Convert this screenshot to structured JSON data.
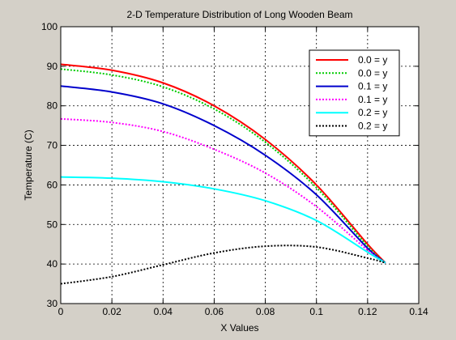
{
  "chart_data": {
    "type": "line",
    "title": "2-D Temperature Distribution of Long Wooden Beam",
    "xlabel": "X Values",
    "ylabel": "Temperature (C)",
    "xlim": [
      0,
      0.14
    ],
    "ylim": [
      30,
      100
    ],
    "xticks": [
      "0",
      "0.02",
      "0.04",
      "0.06",
      "0.08",
      "0.1",
      "0.12",
      "0.14"
    ],
    "yticks": [
      "30",
      "40",
      "50",
      "60",
      "70",
      "80",
      "90",
      "100"
    ],
    "grid": true,
    "legend_position": "top-right",
    "series": [
      {
        "name": "0.0 = y",
        "color": "#ff0000",
        "style": "solid",
        "x": [
          0,
          0.02,
          0.04,
          0.06,
          0.08,
          0.1,
          0.12,
          0.127
        ],
        "values": [
          90.5,
          89,
          85.8,
          80,
          71.5,
          60,
          45,
          40.3
        ]
      },
      {
        "name": "0.0 = y",
        "color": "#00cc00",
        "style": "dotted",
        "x": [
          0,
          0.02,
          0.04,
          0.06,
          0.08,
          0.1,
          0.12,
          0.127
        ],
        "values": [
          89.3,
          87.8,
          84.8,
          79.2,
          70.8,
          59.3,
          44.5,
          40.3
        ]
      },
      {
        "name": "0.1 = y",
        "color": "#0000cc",
        "style": "solid",
        "x": [
          0,
          0.02,
          0.04,
          0.06,
          0.08,
          0.1,
          0.12,
          0.127
        ],
        "values": [
          85,
          83.5,
          80.5,
          75,
          67.5,
          57.5,
          44,
          40.3
        ]
      },
      {
        "name": "0.1 = y",
        "color": "#ff00ff",
        "style": "dotted",
        "x": [
          0,
          0.02,
          0.04,
          0.06,
          0.08,
          0.1,
          0.12,
          0.127
        ],
        "values": [
          76.7,
          75.8,
          73.5,
          69,
          63,
          54.5,
          43.5,
          40.3
        ]
      },
      {
        "name": "0.2 = y",
        "color": "#00ffff",
        "style": "solid",
        "x": [
          0,
          0.02,
          0.04,
          0.06,
          0.08,
          0.1,
          0.12,
          0.127
        ],
        "values": [
          62,
          61.7,
          60.8,
          59,
          56,
          51,
          43,
          40.3
        ]
      },
      {
        "name": "0.2 = y",
        "color": "#000000",
        "style": "dotted",
        "x": [
          0,
          0.02,
          0.04,
          0.06,
          0.08,
          0.1,
          0.12,
          0.127
        ],
        "values": [
          35,
          36.8,
          39.8,
          42.8,
          44.5,
          44.3,
          41.5,
          40.3
        ]
      }
    ]
  }
}
